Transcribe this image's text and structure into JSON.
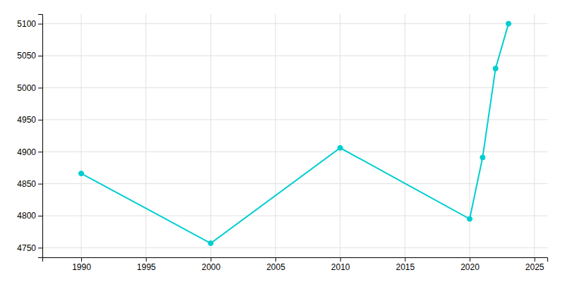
{
  "chart_data": {
    "type": "line",
    "x": [
      1990,
      2000,
      2010,
      2020,
      2021,
      2022,
      2023
    ],
    "values": [
      4866,
      4757,
      4906,
      4795,
      4891,
      5030,
      5100
    ],
    "color": "#00CED1",
    "marker": "circle",
    "xlim": [
      1987,
      2026
    ],
    "ylim": [
      4735,
      5115
    ],
    "xticks": [
      1990,
      1995,
      2000,
      2005,
      2010,
      2015,
      2020,
      2025
    ],
    "yticks": [
      4750,
      4800,
      4850,
      4900,
      4950,
      5000,
      5050,
      5100
    ],
    "grid": true
  }
}
